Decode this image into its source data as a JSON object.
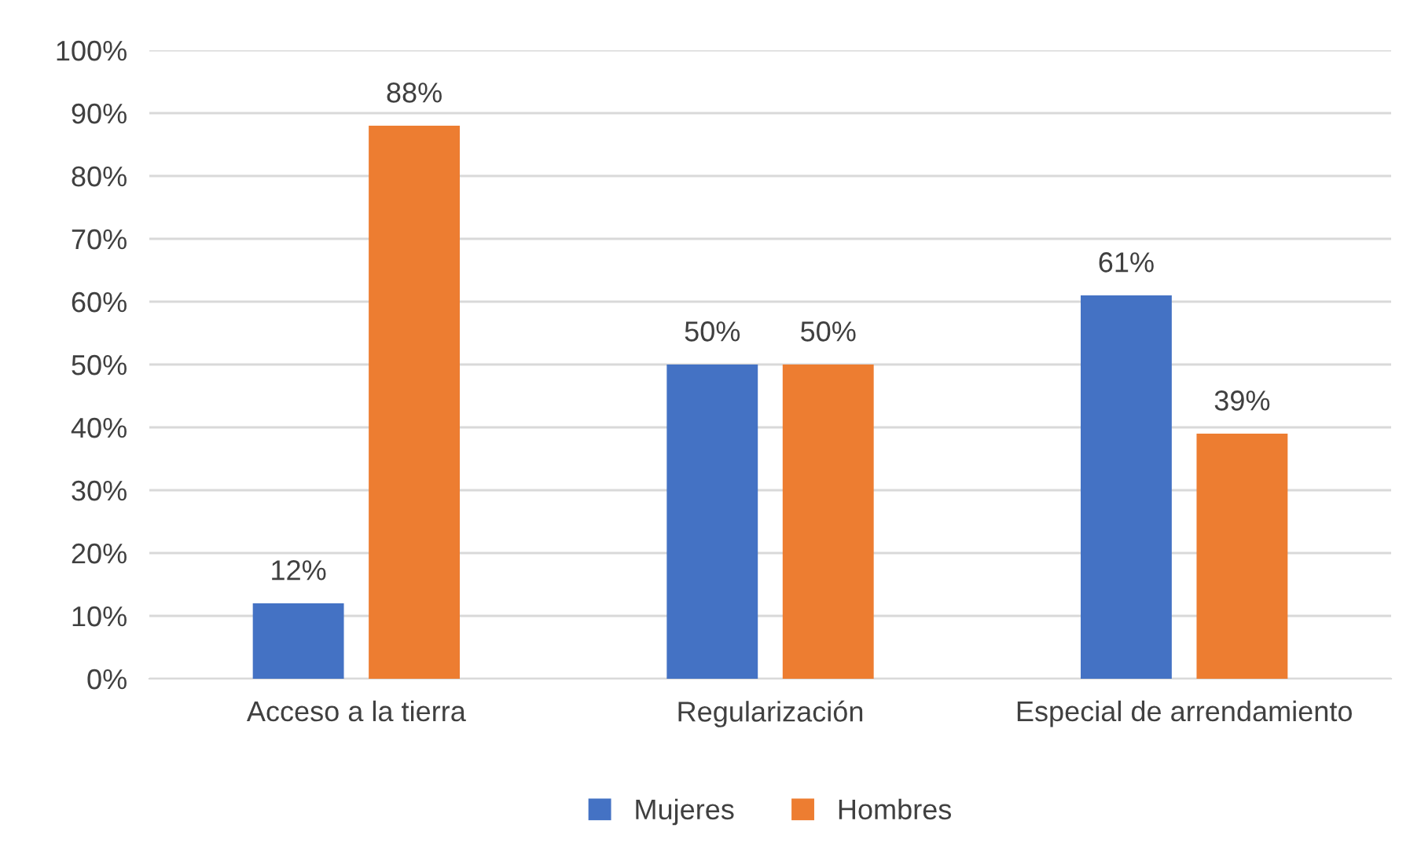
{
  "chart_data": {
    "type": "bar",
    "categories": [
      "Acceso a la tierra",
      "Regularización",
      "Especial de arrendamiento"
    ],
    "series": [
      {
        "name": "Mujeres",
        "color": "#4472c4",
        "values": [
          12,
          50,
          61
        ],
        "value_labels": [
          "12%",
          "50%",
          "61%"
        ]
      },
      {
        "name": "Hombres",
        "color": "#ed7d31",
        "values": [
          88,
          50,
          39
        ],
        "value_labels": [
          "88%",
          "50%",
          "39%"
        ]
      }
    ],
    "ylim": [
      0,
      100
    ],
    "yticks": [
      {
        "value": 0,
        "label": "0%"
      },
      {
        "value": 10,
        "label": "10%"
      },
      {
        "value": 20,
        "label": "20%"
      },
      {
        "value": 30,
        "label": "30%"
      },
      {
        "value": 40,
        "label": "40%"
      },
      {
        "value": 50,
        "label": "50%"
      },
      {
        "value": 60,
        "label": "60%"
      },
      {
        "value": 70,
        "label": "70%"
      },
      {
        "value": 80,
        "label": "80%"
      },
      {
        "value": 90,
        "label": "90%"
      },
      {
        "value": 100,
        "label": "100%"
      }
    ],
    "grid": "y",
    "legend": "bottom"
  }
}
